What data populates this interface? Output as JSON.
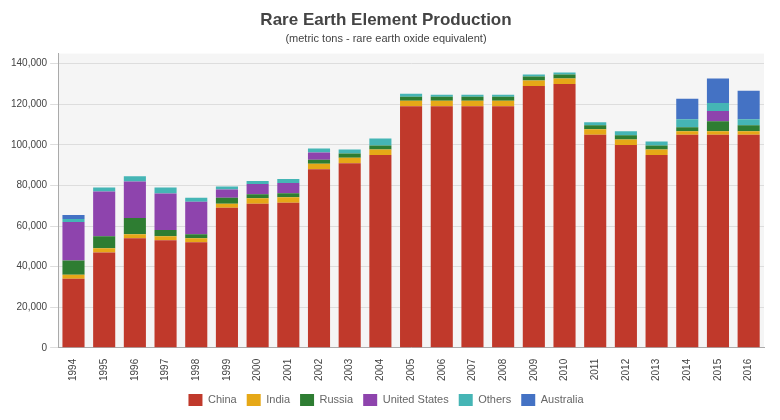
{
  "chart_data": {
    "type": "bar",
    "stacked": true,
    "title": "Rare Earth Element Production",
    "subtitle": "(metric tons - rare earth oxide equivalent)",
    "categories": [
      "1994",
      "1995",
      "1996",
      "1997",
      "1998",
      "1999",
      "2000",
      "2001",
      "2002",
      "2003",
      "2004",
      "2005",
      "2006",
      "2007",
      "2008",
      "2009",
      "2010",
      "2011",
      "2012",
      "2013",
      "2014",
      "2015",
      "2016"
    ],
    "series": [
      {
        "name": "China",
        "color": "#C0392B",
        "values": [
          34000,
          47000,
          54000,
          53000,
          52000,
          69000,
          71000,
          71500,
          88000,
          91000,
          95000,
          119000,
          119000,
          119000,
          119000,
          129000,
          130000,
          105000,
          100000,
          95000,
          105000,
          105000,
          105000
        ]
      },
      {
        "name": "India",
        "color": "#E6A817",
        "values": [
          2000,
          2000,
          2000,
          2000,
          2000,
          2000,
          2700,
          2700,
          2700,
          2700,
          2700,
          2700,
          2700,
          2700,
          2700,
          2700,
          2700,
          2700,
          2700,
          2700,
          1700,
          1700,
          1700
        ]
      },
      {
        "name": "Russia",
        "color": "#2E7D32",
        "values": [
          7000,
          6000,
          8000,
          3000,
          2000,
          3000,
          2000,
          2000,
          2000,
          2000,
          2000,
          2000,
          2000,
          2000,
          2000,
          2000,
          2000,
          2000,
          2000,
          2000,
          2000,
          5000,
          3000
        ]
      },
      {
        "name": "United States",
        "color": "#8E44AD",
        "values": [
          19000,
          22000,
          18000,
          18000,
          16000,
          4000,
          5000,
          5000,
          3500,
          0,
          0,
          0,
          0,
          0,
          0,
          0,
          0,
          0,
          0,
          0,
          0,
          5000,
          0
        ]
      },
      {
        "name": "Others",
        "color": "#45B5B5",
        "values": [
          1500,
          2000,
          2500,
          3000,
          2000,
          1500,
          1500,
          2000,
          2000,
          2000,
          3500,
          1500,
          1000,
          1000,
          1000,
          1000,
          1000,
          1500,
          2000,
          2000,
          4000,
          4000,
          3000
        ]
      },
      {
        "name": "Australia",
        "color": "#4472C4",
        "values": [
          2000,
          0,
          0,
          0,
          0,
          0,
          0,
          0,
          0,
          0,
          0,
          0,
          0,
          0,
          0,
          0,
          0,
          0,
          0,
          0,
          10000,
          12000,
          14000
        ]
      }
    ],
    "ylim": [
      0,
      145000
    ],
    "yticks": [
      0,
      {
        "value": 20000,
        "label": "20,000"
      },
      {
        "value": 40000,
        "label": "40,000"
      },
      {
        "value": 60000,
        "label": "60,000"
      },
      {
        "value": 80000,
        "label": "80,000"
      },
      {
        "value": 100000,
        "label": "100,000"
      },
      {
        "value": 120000,
        "label": "120,000"
      },
      {
        "value": 140000,
        "label": "140,000"
      }
    ],
    "grid": true,
    "legend": "bottom"
  }
}
